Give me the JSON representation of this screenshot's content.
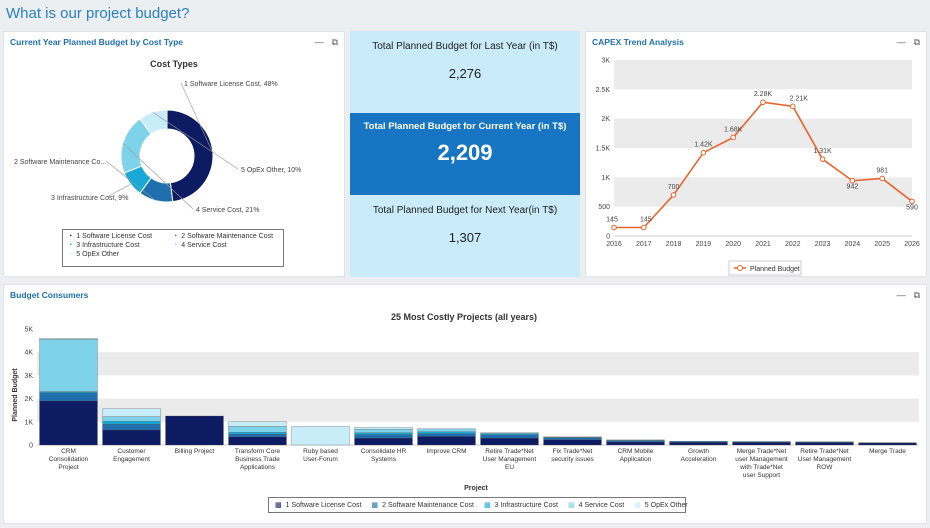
{
  "page": {
    "title": "What is our project budget?"
  },
  "donut_panel": {
    "title": "Current Year Planned Budget by Cost Type",
    "chart_title": "Cost Types",
    "slice_labels": [
      "1 Software License Cost, 48%",
      "2 Software Maintenance Co...",
      "3 Infrastructure Cost, 9%",
      "4 Service Cost, 21%",
      "5 OpEx Other, 10%"
    ],
    "legend": [
      "1 Software License Cost",
      "2 Software Maintenance Cost",
      "3 Infrastructure Cost",
      "4 Service Cost",
      "5 OpEx Other"
    ]
  },
  "kpis": {
    "last_year_label": "Total Planned Budget for Last Year (in T$)",
    "last_year_value": "2,276",
    "current_year_label": "Total Planned Budget for Current Year (in T$)",
    "current_year_value": "2,209",
    "next_year_label": "Total Planned Budget for Next Year(in T$)",
    "next_year_value": "1,307"
  },
  "capex_panel": {
    "title": "CAPEX Trend Analysis",
    "legend": "Planned Budget"
  },
  "consumers_panel": {
    "title": "Budget Consumers",
    "chart_title": "25 Most Costly Projects (all years)",
    "ylabel": "Planned Budget",
    "xlabel": "Project",
    "legend": [
      "1 Software License Cost",
      "2 Software Maintenance Cost",
      "3 Infrastructure Cost",
      "4 Service Cost",
      "5 OpEx Other"
    ]
  },
  "colors": {
    "c1": "#0d1b63",
    "c2": "#1f6fae",
    "c3": "#18a9d6",
    "c4": "#7ed3ea",
    "c5": "#c7edf8",
    "accent": "#2a7fc1",
    "kpi_bg": "#c9ebfa",
    "kpi_hl": "#1775c4",
    "line": "#e8632a"
  },
  "chart_data": [
    {
      "type": "pie",
      "title": "Cost Types",
      "categories": [
        "1 Software License Cost",
        "2 Software Maintenance Cost",
        "3 Infrastructure Cost",
        "4 Service Cost",
        "5 OpEx Other"
      ],
      "values": [
        48,
        12,
        9,
        21,
        10
      ]
    },
    {
      "type": "line",
      "title": "CAPEX Trend Analysis",
      "x": [
        2016,
        2017,
        2018,
        2019,
        2020,
        2021,
        2022,
        2023,
        2024,
        2025,
        2026
      ],
      "series": [
        {
          "name": "Planned Budget",
          "values": [
            145,
            145,
            700,
            1420,
            1680,
            2280,
            2210,
            1310,
            942,
            981,
            590
          ]
        }
      ],
      "data_labels": [
        "145",
        "145",
        "700",
        "1.42K",
        "1.68K",
        "2.28K",
        "2.21K",
        "1.31K",
        "942",
        "981",
        "590"
      ],
      "ylim": [
        0,
        3000
      ],
      "yticks": [
        "0",
        "500",
        "1K",
        "1.5K",
        "2K",
        "2.5K",
        "3K"
      ],
      "legend": "bottom"
    },
    {
      "type": "bar",
      "title": "25 Most Costly Projects (all years)",
      "xlabel": "Project",
      "ylabel": "Planned Budget",
      "ylim": [
        0,
        5000
      ],
      "yticks": [
        "0",
        "1K",
        "2K",
        "3K",
        "4K",
        "5K"
      ],
      "stacked": true,
      "categories": [
        "CRM Consolidation Project",
        "Customer Engagement",
        "Billing Project",
        "Transform Core Business Trade Applications",
        "Ruby based User-Forum",
        "Consolidate HR Systems",
        "Improve CRM",
        "Retire Trade*Net User Management EU",
        "Fix Trade*Net security issues",
        "CRM Mobile Application",
        "Growth Acceleration",
        "Merge Trade*Net user Management with Trade*Net user Support",
        "Retire Trade*Net User Management ROW",
        "Merge Trade"
      ],
      "series": [
        {
          "name": "1 Software License Cost",
          "values": [
            1900,
            650,
            1250,
            350,
            0,
            300,
            370,
            300,
            230,
            130,
            120,
            120,
            110,
            90
          ]
        },
        {
          "name": "2 Software Maintenance Cost",
          "values": [
            350,
            250,
            0,
            120,
            0,
            150,
            120,
            140,
            80,
            50,
            40,
            30,
            30,
            10
          ]
        },
        {
          "name": "3 Infrastructure Cost",
          "values": [
            50,
            120,
            0,
            80,
            0,
            80,
            80,
            50,
            20,
            20,
            0,
            0,
            0,
            0
          ]
        },
        {
          "name": "4 Service Cost",
          "values": [
            2250,
            200,
            0,
            250,
            0,
            150,
            130,
            40,
            20,
            20,
            0,
            0,
            0,
            0
          ]
        },
        {
          "name": "5 OpEx Other",
          "values": [
            50,
            350,
            0,
            200,
            800,
            80,
            0,
            0,
            0,
            0,
            0,
            0,
            0,
            0
          ]
        }
      ],
      "legend": "bottom"
    }
  ]
}
